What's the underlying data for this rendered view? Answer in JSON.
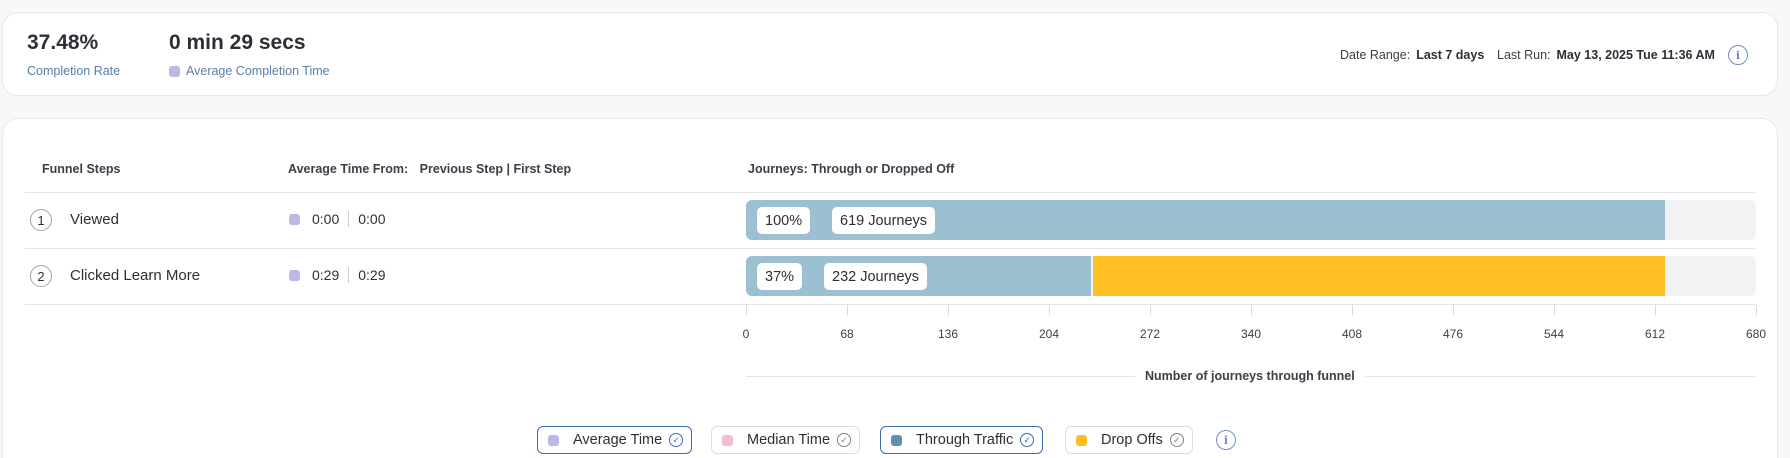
{
  "summary": {
    "completion_rate": {
      "value": "37.48%",
      "label": "Completion Rate"
    },
    "average_completion_time": {
      "value": "0 min 29 secs",
      "label": "Average Completion Time"
    },
    "date_range": {
      "label": "Date Range:",
      "value": "Last 7 days"
    },
    "last_run": {
      "label": "Last Run:",
      "value": "May 13, 2025 Tue 11:36 AM"
    },
    "info_icon": "info-icon"
  },
  "table": {
    "headers": {
      "steps": "Funnel Steps",
      "avg_time": "Average Time From:",
      "avg_time_modes": "Previous Step | First Step",
      "journeys": "Journeys: Through or Dropped Off"
    },
    "rows": [
      {
        "num": "1",
        "name": "Viewed",
        "prev": "0:00",
        "first": "0:00",
        "pct": "100%",
        "journeys": "619 Journeys",
        "through": 619,
        "dropoff": 0
      },
      {
        "num": "2",
        "name": "Clicked Learn More",
        "prev": "0:29",
        "first": "0:29",
        "pct": "37%",
        "journeys": "232 Journeys",
        "through": 232,
        "dropoff": 387
      }
    ]
  },
  "chart_data": {
    "type": "bar",
    "orientation": "horizontal",
    "stacked": true,
    "categories": [
      "Viewed",
      "Clicked Learn More"
    ],
    "series": [
      {
        "name": "Through Traffic",
        "values": [
          619,
          232
        ],
        "color": "#9ac0d2"
      },
      {
        "name": "Drop Offs",
        "values": [
          0,
          387
        ],
        "color": "#fdbf24"
      }
    ],
    "xlabel": "Number of journeys through funnel",
    "xlim": [
      0,
      680
    ],
    "xticks": [
      "0",
      "68",
      "136",
      "204",
      "272",
      "340",
      "408",
      "476",
      "544",
      "612",
      "680"
    ]
  },
  "legend": {
    "items": [
      {
        "label": "Average Time",
        "color": "#bab9e6",
        "active": true
      },
      {
        "label": "Median Time",
        "color": "#f7bcd0",
        "active": false
      },
      {
        "label": "Through Traffic",
        "color": "#5f90ad",
        "active": true
      },
      {
        "label": "Drop Offs",
        "color": "#fbbe24",
        "active": false
      }
    ],
    "info_icon": "info-icon"
  }
}
